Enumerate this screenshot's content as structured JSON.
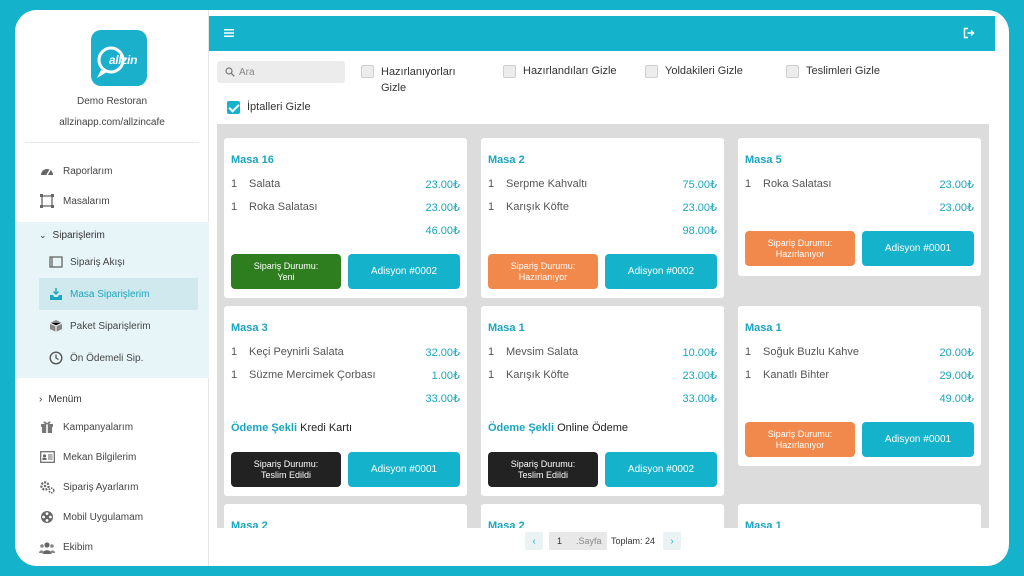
{
  "brand": {
    "logo_text": "allzin",
    "restaurant_name": "Demo Restoran",
    "restaurant_url": "allzinapp.com/allzincafe"
  },
  "sidebar": {
    "top_items": [
      {
        "label": "Raporlarım",
        "icon": "speedometer-icon"
      },
      {
        "label": "Masalarım",
        "icon": "table-frame-icon"
      }
    ],
    "orders_group": {
      "title": "Siparişlerim",
      "items": [
        {
          "label": "Sipariş Akışı",
          "icon": "list-flow-icon",
          "active": false
        },
        {
          "label": "Masa Siparişlerim",
          "icon": "inbox-tray-icon",
          "active": true
        },
        {
          "label": "Paket Siparişlerim",
          "icon": "package-box-icon",
          "active": false
        },
        {
          "label": "Ön Ödemeli Sip.",
          "icon": "clock-icon",
          "active": false
        }
      ]
    },
    "menu_title": "Menüm",
    "bottom_items": [
      {
        "label": "Kampanyalarım",
        "icon": "gift-icon"
      },
      {
        "label": "Mekan Bilgilerim",
        "icon": "id-card-icon"
      },
      {
        "label": "Sipariş Ayarlarım",
        "icon": "gears-icon"
      },
      {
        "label": "Mobil Uygulamam",
        "icon": "film-reel-icon"
      },
      {
        "label": "Ekibim",
        "icon": "users-icon"
      }
    ]
  },
  "filters": {
    "search_placeholder": "Ara",
    "checkboxes": [
      {
        "label": "Hazırlanıyorları Gizle",
        "checked": false
      },
      {
        "label": "Hazırlandıları Gizle",
        "checked": false
      },
      {
        "label": "Yoldakileri Gizle",
        "checked": false
      },
      {
        "label": "Teslimleri Gizle",
        "checked": false
      },
      {
        "label": "İptalleri Gizle",
        "checked": true
      }
    ]
  },
  "orders": [
    {
      "title": "Masa 16",
      "items": [
        {
          "qty": "1",
          "name": "Salata",
          "price": "23.00₺"
        },
        {
          "qty": "1",
          "name": "Roka Salatası",
          "price": "23.00₺"
        }
      ],
      "total": "46.00₺",
      "status": "Sipariş Durumu:\nYeni",
      "status_kind": "new",
      "check": "Adisyon #0002"
    },
    {
      "title": "Masa 2",
      "items": [
        {
          "qty": "1",
          "name": "Serpme Kahvaltı",
          "price": "75.00₺"
        },
        {
          "qty": "1",
          "name": "Karışık Köfte",
          "price": "23.00₺"
        }
      ],
      "total": "98.00₺",
      "status": "Sipariş Durumu:\nHazırlanıyor",
      "status_kind": "prep",
      "check": "Adisyon #0002"
    },
    {
      "title": "Masa 5",
      "items": [
        {
          "qty": "1",
          "name": "Roka Salatası",
          "price": "23.00₺"
        }
      ],
      "total": "23.00₺",
      "status": "Sipariş Durumu:\nHazırlanıyor",
      "status_kind": "prep",
      "check": "Adisyon #0001"
    },
    {
      "title": "Masa 3",
      "items": [
        {
          "qty": "1",
          "name": "Keçi Peynirli Salata",
          "price": "32.00₺"
        },
        {
          "qty": "1",
          "name": "Süzme Mercimek Çorbası",
          "price": "1.00₺"
        }
      ],
      "total": "33.00₺",
      "payment_label": "Ödeme Şekli",
      "payment_value": "Kredi Kartı",
      "status": "Sipariş Durumu:\nTeslim Edildi",
      "status_kind": "done",
      "check": "Adisyon #0001"
    },
    {
      "title": "Masa 1",
      "items": [
        {
          "qty": "1",
          "name": "Mevsim Salata",
          "price": "10.00₺"
        },
        {
          "qty": "1",
          "name": "Karışık Köfte",
          "price": "23.00₺"
        }
      ],
      "total": "33.00₺",
      "payment_label": "Ödeme Şekli",
      "payment_value": "Online Ödeme",
      "status": "Sipariş Durumu:\nTeslim Edildi",
      "status_kind": "done",
      "check": "Adisyon #0002"
    },
    {
      "title": "Masa 1",
      "items": [
        {
          "qty": "1",
          "name": "Soğuk Buzlu Kahve",
          "price": "20.00₺"
        },
        {
          "qty": "1",
          "name": "Kanatlı Bihter",
          "price": "29.00₺"
        }
      ],
      "total": "49.00₺",
      "status": "Sipariş Durumu:\nHazırlanıyor",
      "status_kind": "prep",
      "check": "Adisyon #0001"
    },
    {
      "title": "Masa 2"
    },
    {
      "title": "Masa 2"
    },
    {
      "title": "Masa 1"
    }
  ],
  "pagination": {
    "prev": "‹",
    "page": "1",
    "page_label": ".Sayfa",
    "total": "Toplam: 24",
    "next": "›"
  },
  "colors": {
    "accent": "#15b3cb",
    "status_new": "#2e7d1f",
    "status_prep": "#f0894b",
    "status_done": "#222222"
  }
}
